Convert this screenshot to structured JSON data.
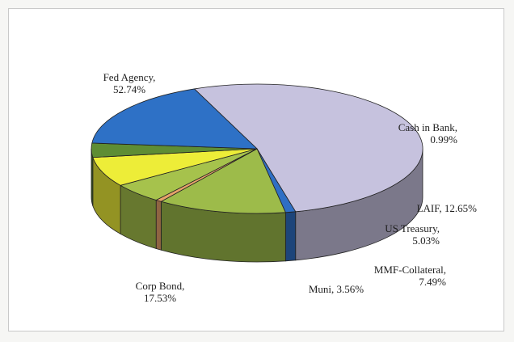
{
  "chart_data": {
    "type": "pie",
    "three_d": true,
    "legend": "none",
    "slices": [
      {
        "label_line1": "Fed Agency,",
        "label_line2": "52.74%",
        "value": 52.74,
        "color": "#c6c2de"
      },
      {
        "label_line1": "Cash in Bank,",
        "label_line2": "0.99%",
        "value": 0.99,
        "color": "#2f6fc4"
      },
      {
        "label_line1": "LAIF, 12.65%",
        "label_line2": "",
        "value": 12.65,
        "color": "#9dbb4a"
      },
      {
        "label_line1": "",
        "label_line2": "",
        "value": 0.6,
        "color": "#e6a26a"
      },
      {
        "label_line1": "US Treasury,",
        "label_line2": "5.03%",
        "value": 5.03,
        "color": "#a6c24c"
      },
      {
        "label_line1": "MMF-Collateral,",
        "label_line2": "7.49%",
        "value": 7.49,
        "color": "#eded38"
      },
      {
        "label_line1": "Muni, 3.56%",
        "label_line2": "",
        "value": 3.56,
        "color": "#5e8d34"
      },
      {
        "label_line1": "Corp Bond,",
        "label_line2": "17.53%",
        "value": 17.53,
        "color": "#2e71c6"
      }
    ]
  }
}
